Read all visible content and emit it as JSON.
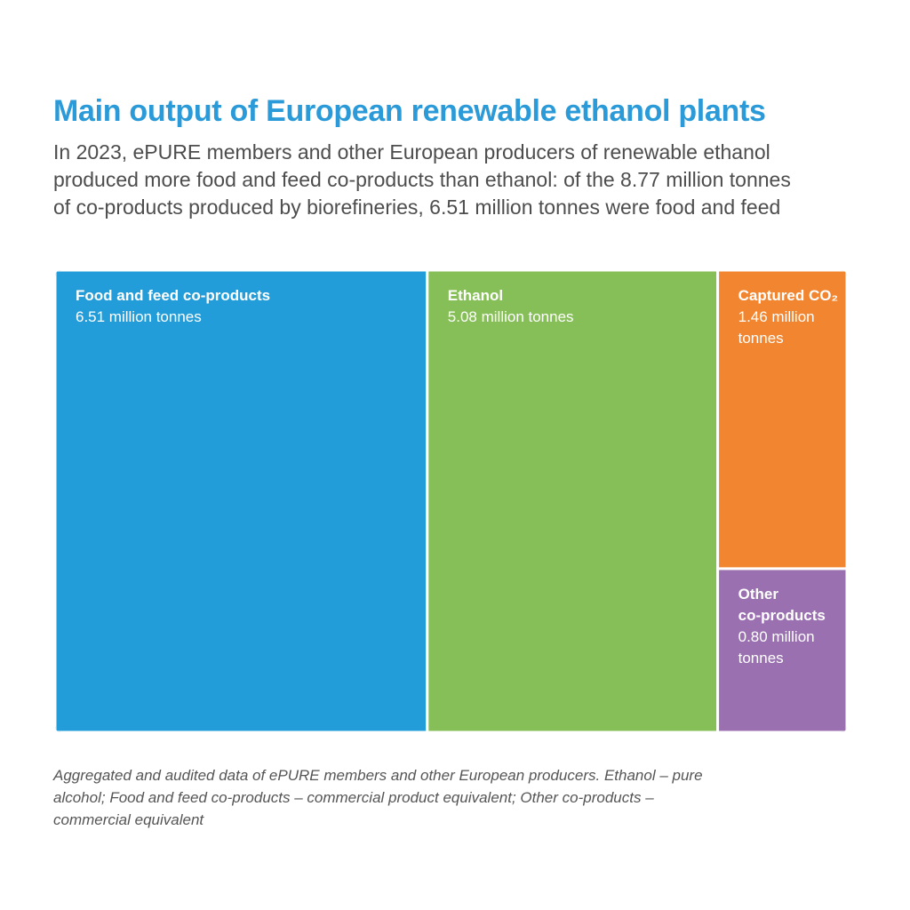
{
  "chart_data": {
    "type": "treemap",
    "title": "Main output of European renewable ethanol plants",
    "subtitle_lines": [
      "In 2023, ePURE members and other European producers of renewable ethanol",
      "produced more food and feed co-products than ethanol: of the 8.77 million tonnes",
      "of co-products produced by biorefineries, 6.51 million tonnes were food and feed"
    ],
    "unit": "million tonnes",
    "tiles": [
      {
        "label": "Food and feed co-products",
        "label_lines": [
          "Food and feed co-products"
        ],
        "value": 6.51,
        "value_lines": [
          "6.51 million tonnes"
        ],
        "color": "#229dd9"
      },
      {
        "label": "Ethanol",
        "label_lines": [
          "Ethanol"
        ],
        "value": 5.08,
        "value_lines": [
          "5.08 million tonnes"
        ],
        "color": "#86bf57"
      },
      {
        "label": "Captured CO₂",
        "label_lines": [
          "Captured CO₂"
        ],
        "value": 1.46,
        "value_lines": [
          "1.46 million",
          "tonnes"
        ],
        "color": "#f28630"
      },
      {
        "label": "Other co-products",
        "label_lines": [
          "Other",
          "co-products"
        ],
        "value": 0.8,
        "value_lines": [
          "0.80 million",
          "tonnes"
        ],
        "color": "#9a70b0"
      }
    ],
    "footnote_lines": [
      "Aggregated and audited data of ePURE members and other European producers. Ethanol – pure",
      "alcohol; Food and feed co-products – commercial product equivalent; Other co-products –",
      "commercial equivalent"
    ]
  }
}
